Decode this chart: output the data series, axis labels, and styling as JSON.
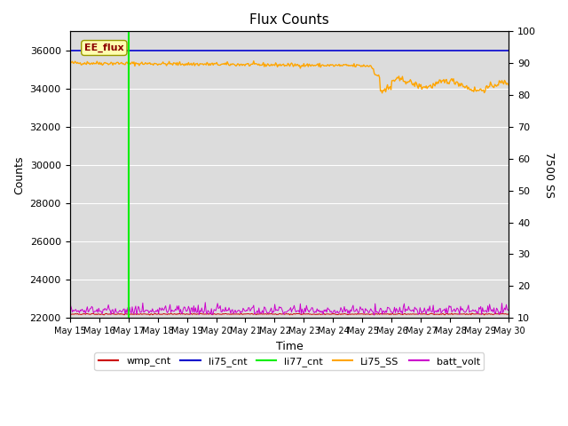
{
  "title": "Flux Counts",
  "xlabel": "Time",
  "ylabel_left": "Counts",
  "ylabel_right": "7500 SS",
  "xlim_days": [
    0,
    15
  ],
  "ylim_left": [
    22000,
    37000
  ],
  "ylim_right": [
    10,
    100
  ],
  "background_color": "#dcdcdc",
  "ee_flux_label": "EE_flux",
  "vline_x": 2.0,
  "vline_color": "#00ee00",
  "li75_cnt_color": "#0000cc",
  "orange_color": "#ffa500",
  "purple_color": "#cc00cc",
  "wmp_cnt_color": "#cc0000",
  "green_color": "#00ee00",
  "xtick_labels": [
    "May 15",
    "May 16",
    "May 17",
    "May 18",
    "May 19",
    "May 20",
    "May 21",
    "May 22",
    "May 23",
    "May 24",
    "May 25",
    "May 26",
    "May 27",
    "May 28",
    "May 29",
    "May 30"
  ],
  "xtick_positions": [
    0,
    1,
    2,
    3,
    4,
    5,
    6,
    7,
    8,
    9,
    10,
    11,
    12,
    13,
    14,
    15
  ],
  "right_yticks": [
    10,
    20,
    30,
    40,
    50,
    60,
    70,
    80,
    90,
    100
  ]
}
